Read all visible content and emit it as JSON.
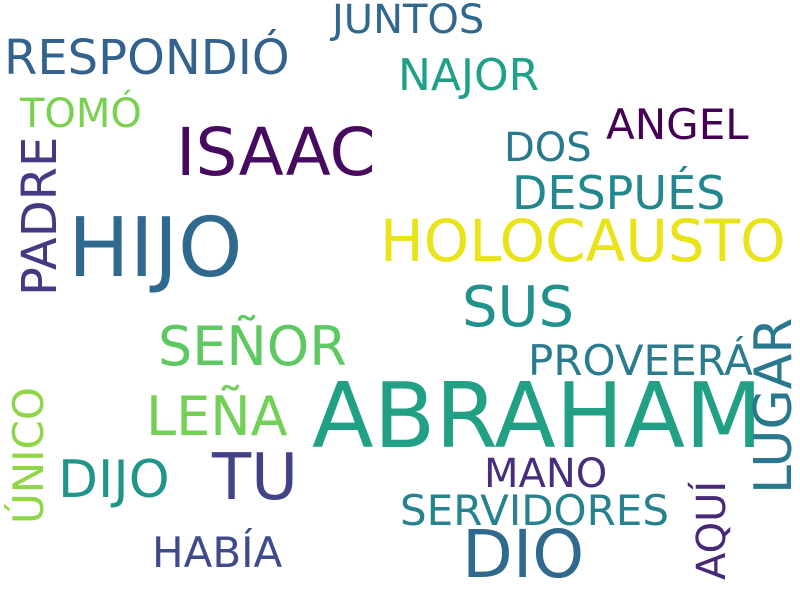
{
  "words": [
    {
      "text": "ABRAHAM",
      "color": "#21a085"
    },
    {
      "text": "HIJO",
      "color": "#2f6a8e"
    },
    {
      "text": "ISAAC",
      "color": "#460b5e"
    },
    {
      "text": "HOLOCAUSTO",
      "color": "#e8e419"
    },
    {
      "text": "DIO",
      "color": "#2f6a8e"
    },
    {
      "text": "TU",
      "color": "#414287"
    },
    {
      "text": "SUS",
      "color": "#21918c"
    },
    {
      "text": "SEÑOR",
      "color": "#5ec962"
    },
    {
      "text": "LEÑA",
      "color": "#73d056"
    },
    {
      "text": "DIJO",
      "color": "#22958b"
    },
    {
      "text": "RESPONDIÓ",
      "color": "#33628d"
    },
    {
      "text": "LUGAR",
      "color": "#2a788e"
    },
    {
      "text": "PADRE",
      "color": "#443983"
    },
    {
      "text": "DESPUÉS",
      "color": "#23888e"
    },
    {
      "text": "NAJOR",
      "color": "#1fa088"
    },
    {
      "text": "SERVIDORES",
      "color": "#26828e"
    },
    {
      "text": "PROVEERÁ",
      "color": "#287c8e"
    },
    {
      "text": "HABÍA",
      "color": "#3e4a89"
    },
    {
      "text": "ÚNICO",
      "color": "#8ed645"
    },
    {
      "text": "ANGEL",
      "color": "#440154"
    },
    {
      "text": "JUNTOS",
      "color": "#31688e"
    },
    {
      "text": "TOMÓ",
      "color": "#7ad151"
    },
    {
      "text": "DOS",
      "color": "#29798e"
    },
    {
      "text": "MANO",
      "color": "#472d7b"
    },
    {
      "text": "AQUÍ",
      "color": "#482878"
    }
  ]
}
